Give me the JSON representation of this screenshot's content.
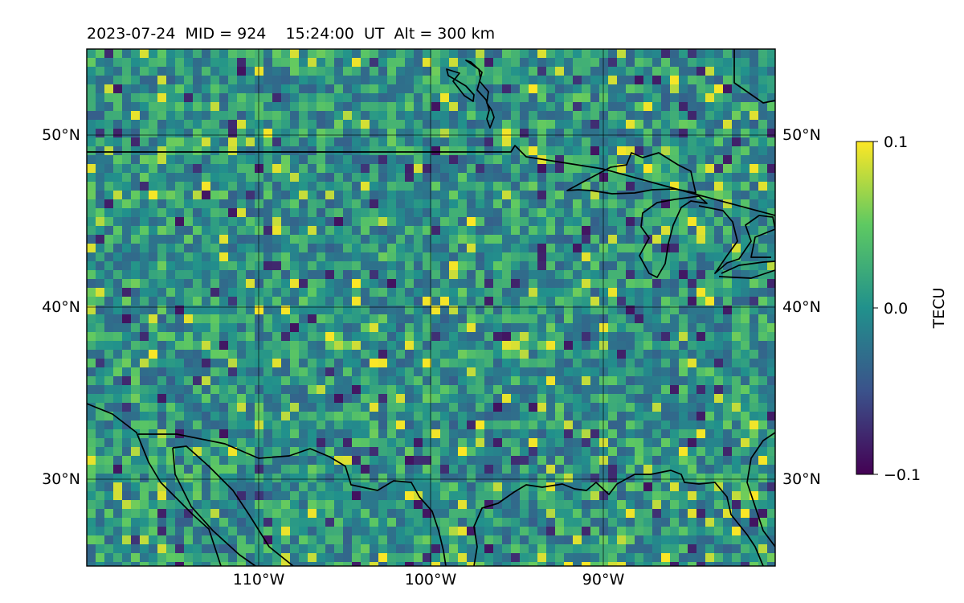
{
  "title": "2023-07-24  MID = 924    15:24:00  UT  Alt = 300 km",
  "map": {
    "lat_ticks": [
      "50°N",
      "40°N",
      "30°N"
    ],
    "lon_ticks": [
      "110°W",
      "100°W",
      "90°W"
    ],
    "extent": {
      "lon_min": -120,
      "lon_max": -80,
      "lat_min": 25,
      "lat_max": 55
    }
  },
  "colorbar": {
    "label": "TECU",
    "ticks": [
      "0.1",
      "0.0",
      "−0.1"
    ],
    "vmin": -0.1,
    "vmax": 0.1,
    "colormap": "viridis"
  },
  "colors": {
    "low": "#440154",
    "mid": "#21918c",
    "high": "#fde725"
  }
}
